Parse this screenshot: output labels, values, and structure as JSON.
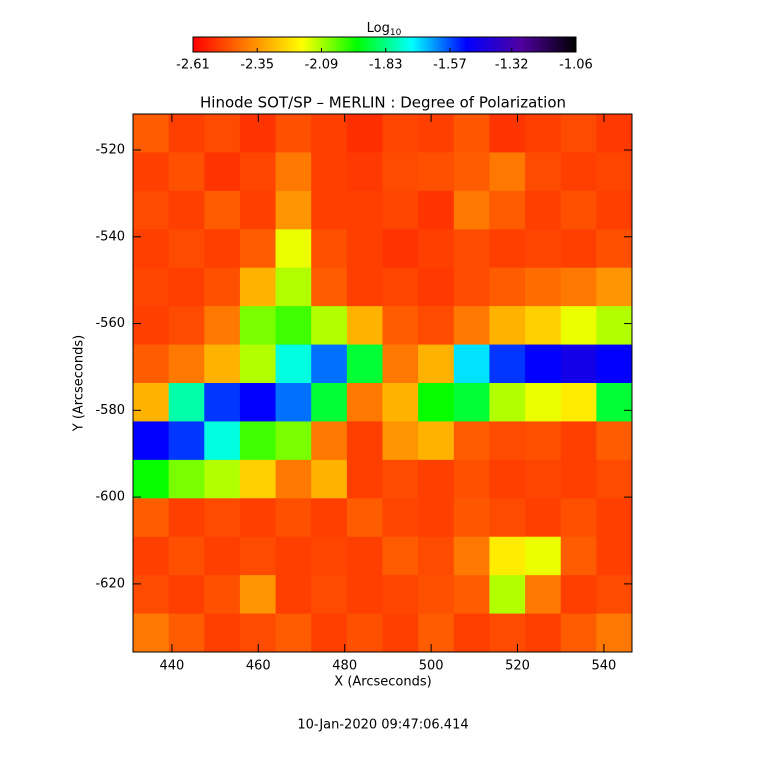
{
  "chart_data": {
    "type": "heatmap",
    "title": "Hinode SOT/SP – MERLIN : Degree of Polarization",
    "x_label": "X (Arcseconds)",
    "y_label": "Y (Arcseconds)",
    "footer": "10-Jan-2020 09:47:06.414",
    "colorbar_label": "Log",
    "colorbar_label_subscript": "10",
    "colormap": [
      "#ff0000",
      "#ff7f00",
      "#ffff00",
      "#00ff00",
      "#00ffff",
      "#0000ff",
      "#5000a0",
      "#000000"
    ],
    "clim": [
      -2.61,
      -1.06
    ],
    "cticks": [
      -2.61,
      -2.35,
      -2.09,
      -1.83,
      -1.57,
      -1.32,
      -1.06
    ],
    "xlim": [
      431,
      546.5
    ],
    "ylim": [
      -635.7,
      -511.7
    ],
    "xticks": [
      440,
      460,
      480,
      500,
      520,
      540
    ],
    "yticks": [
      -520,
      -540,
      -560,
      -580,
      -600,
      -620
    ],
    "z": [
      [
        -2.45,
        -2.5,
        -2.48,
        -2.52,
        -2.47,
        -2.5,
        -2.53,
        -2.49,
        -2.5,
        -2.46,
        -2.52,
        -2.5,
        -2.48,
        -2.51
      ],
      [
        -2.5,
        -2.47,
        -2.52,
        -2.49,
        -2.4,
        -2.5,
        -2.51,
        -2.48,
        -2.47,
        -2.45,
        -2.4,
        -2.48,
        -2.5,
        -2.49
      ],
      [
        -2.48,
        -2.5,
        -2.45,
        -2.5,
        -2.35,
        -2.5,
        -2.5,
        -2.49,
        -2.52,
        -2.4,
        -2.45,
        -2.5,
        -2.47,
        -2.5
      ],
      [
        -2.5,
        -2.48,
        -2.5,
        -2.45,
        -2.15,
        -2.47,
        -2.5,
        -2.52,
        -2.5,
        -2.48,
        -2.5,
        -2.49,
        -2.5,
        -2.47
      ],
      [
        -2.49,
        -2.5,
        -2.47,
        -2.3,
        -2.1,
        -2.45,
        -2.5,
        -2.49,
        -2.51,
        -2.48,
        -2.45,
        -2.42,
        -2.4,
        -2.35
      ],
      [
        -2.5,
        -2.48,
        -2.4,
        -2.05,
        -2.0,
        -2.1,
        -2.3,
        -2.45,
        -2.48,
        -2.4,
        -2.3,
        -2.25,
        -2.15,
        -2.1
      ],
      [
        -2.45,
        -2.4,
        -2.3,
        -2.1,
        -1.75,
        -1.6,
        -1.9,
        -2.4,
        -2.3,
        -1.7,
        -1.55,
        -1.5,
        -1.45,
        -1.5
      ],
      [
        -2.3,
        -1.8,
        -1.55,
        -1.5,
        -1.6,
        -1.9,
        -2.4,
        -2.3,
        -1.95,
        -1.9,
        -2.1,
        -2.15,
        -2.2,
        -1.9
      ],
      [
        -1.5,
        -1.55,
        -1.75,
        -2.0,
        -2.05,
        -2.4,
        -2.5,
        -2.35,
        -2.3,
        -2.45,
        -2.48,
        -2.47,
        -2.5,
        -2.45
      ],
      [
        -1.95,
        -2.05,
        -2.1,
        -2.25,
        -2.4,
        -2.3,
        -2.5,
        -2.48,
        -2.5,
        -2.47,
        -2.5,
        -2.49,
        -2.5,
        -2.48
      ],
      [
        -2.45,
        -2.5,
        -2.48,
        -2.5,
        -2.47,
        -2.5,
        -2.45,
        -2.49,
        -2.5,
        -2.46,
        -2.48,
        -2.5,
        -2.47,
        -2.5
      ],
      [
        -2.5,
        -2.47,
        -2.5,
        -2.48,
        -2.5,
        -2.49,
        -2.5,
        -2.45,
        -2.48,
        -2.4,
        -2.2,
        -2.15,
        -2.45,
        -2.5
      ],
      [
        -2.48,
        -2.5,
        -2.47,
        -2.35,
        -2.5,
        -2.48,
        -2.5,
        -2.49,
        -2.47,
        -2.45,
        -2.1,
        -2.4,
        -2.5,
        -2.48
      ],
      [
        -2.4,
        -2.45,
        -2.5,
        -2.48,
        -2.45,
        -2.5,
        -2.47,
        -2.5,
        -2.45,
        -2.5,
        -2.48,
        -2.5,
        -2.45,
        -2.4
      ]
    ]
  }
}
